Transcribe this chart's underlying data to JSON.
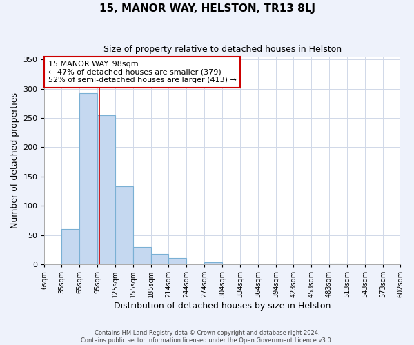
{
  "title": "15, MANOR WAY, HELSTON, TR13 8LJ",
  "subtitle": "Size of property relative to detached houses in Helston",
  "xlabel": "Distribution of detached houses by size in Helston",
  "ylabel": "Number of detached properties",
  "footer_line1": "Contains HM Land Registry data © Crown copyright and database right 2024.",
  "footer_line2": "Contains public sector information licensed under the Open Government Licence v3.0.",
  "bin_edges": [
    6,
    35,
    65,
    95,
    125,
    155,
    185,
    214,
    244,
    274,
    304,
    334,
    364,
    394,
    423,
    453,
    483,
    513,
    543,
    573,
    602
  ],
  "bin_labels": [
    "6sqm",
    "35sqm",
    "65sqm",
    "95sqm",
    "125sqm",
    "155sqm",
    "185sqm",
    "214sqm",
    "244sqm",
    "274sqm",
    "304sqm",
    "334sqm",
    "364sqm",
    "394sqm",
    "423sqm",
    "453sqm",
    "483sqm",
    "513sqm",
    "543sqm",
    "573sqm",
    "602sqm"
  ],
  "bar_heights": [
    0,
    60,
    293,
    255,
    133,
    30,
    18,
    11,
    0,
    3,
    0,
    0,
    0,
    0,
    0,
    0,
    1,
    0,
    0,
    0
  ],
  "bar_color": "#c5d8f0",
  "bar_edge_color": "#7ab0d4",
  "vline_x": 98,
  "vline_color": "#cc0000",
  "annotation_text": "15 MANOR WAY: 98sqm\n← 47% of detached houses are smaller (379)\n52% of semi-detached houses are larger (413) →",
  "annotation_box_edgecolor": "#cc0000",
  "annotation_box_facecolor": "#ffffff",
  "ylim": [
    0,
    355
  ],
  "grid_color": "#d0d8e8",
  "background_color": "#eef2fb",
  "plot_background": "#ffffff",
  "title_fontsize": 11,
  "subtitle_fontsize": 9
}
